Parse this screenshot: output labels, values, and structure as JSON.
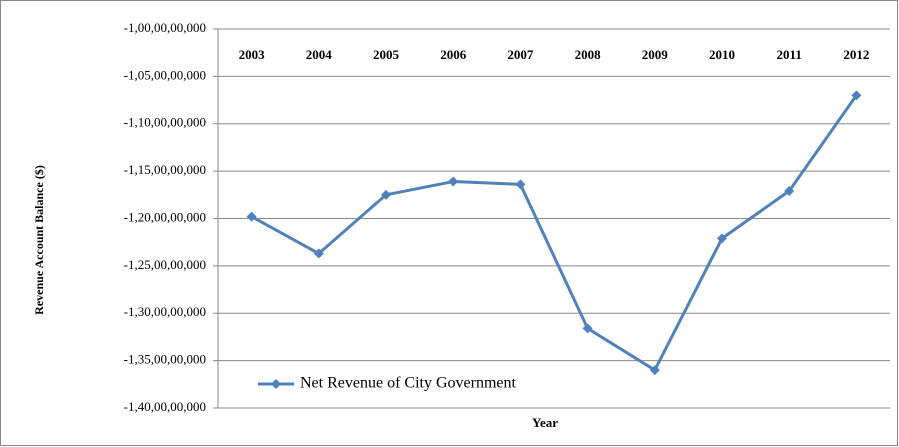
{
  "chart_data": {
    "type": "line",
    "x_label": "Year",
    "y_label": "Revenue Account Balance ($)",
    "categories": [
      "2003",
      "2004",
      "2005",
      "2006",
      "2007",
      "2008",
      "2009",
      "2010",
      "2011",
      "2012"
    ],
    "series": [
      {
        "name": "Net Revenue of City Government",
        "color": "#4f81bd",
        "values": [
          -1198000000,
          -1237000000,
          -1175000000,
          -1161000000,
          -1164000000,
          -1316000000,
          -1360000000,
          -1221000000,
          -1171000000,
          -1070000000
        ]
      }
    ],
    "ylim": [
      -1400000000,
      -1000000000
    ],
    "yticks": [
      {
        "value": -1400000000,
        "label": "-1,40,00,00,000"
      },
      {
        "value": -1350000000,
        "label": "-1,35,00,00,000"
      },
      {
        "value": -1300000000,
        "label": "-1,30,00,00,000"
      },
      {
        "value": -1250000000,
        "label": "-1,25,00,00,000"
      },
      {
        "value": -1200000000,
        "label": "-1,20,00,00,000"
      },
      {
        "value": -1150000000,
        "label": "-1,15,00,00,000"
      },
      {
        "value": -1100000000,
        "label": "-1,10,00,00,000"
      },
      {
        "value": -1050000000,
        "label": "-1,05,00,00,000"
      },
      {
        "value": -1000000000,
        "label": "-1,00,00,00,000"
      }
    ],
    "grid": true,
    "legend": "lower left"
  }
}
